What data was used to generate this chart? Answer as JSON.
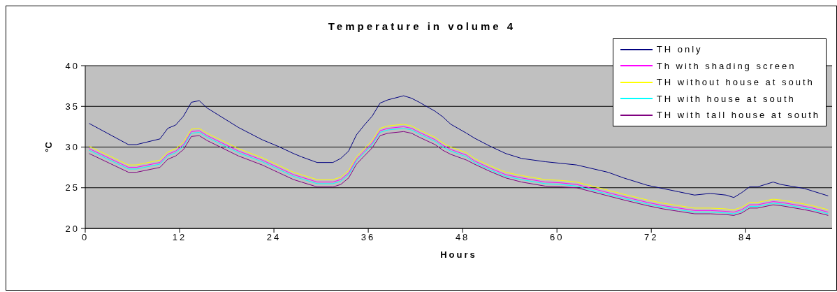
{
  "chart_data": {
    "type": "line",
    "title": "Temperature in volume 4",
    "xlabel": "Hours",
    "ylabel": "°C",
    "x": [
      0.5,
      5.5,
      6.5,
      9.5,
      10.5,
      11.5,
      12.5,
      13.5,
      14.5,
      15.5,
      19.5,
      22.5,
      24.5,
      26.5,
      27.5,
      29.5,
      31.5,
      32.5,
      33.5,
      34.5,
      35.5,
      36.5,
      37.5,
      38.5,
      40.5,
      41.5,
      42.5,
      44.5,
      45.5,
      46.5,
      48.5,
      49.5,
      51.5,
      53.5,
      55.5,
      58.5,
      60.5,
      62.5,
      66.5,
      68.5,
      71.5,
      73.5,
      75.5,
      77.5,
      79.5,
      81.5,
      82.5,
      83.5,
      84.5,
      85.5,
      87.5,
      88.5,
      91.5,
      92.5,
      94.5
    ],
    "series": [
      {
        "name": "TH only",
        "color": "#000080",
        "values": [
          32.9,
          30.3,
          30.3,
          31.0,
          32.3,
          32.7,
          33.8,
          35.5,
          35.7,
          34.8,
          32.4,
          30.9,
          30.1,
          29.2,
          28.8,
          28.1,
          28.1,
          28.6,
          29.5,
          31.5,
          32.7,
          33.8,
          35.4,
          35.8,
          36.3,
          36.0,
          35.5,
          34.4,
          33.7,
          32.8,
          31.7,
          31.1,
          30.1,
          29.2,
          28.6,
          28.2,
          28.0,
          27.8,
          26.9,
          26.2,
          25.3,
          24.9,
          24.5,
          24.1,
          24.3,
          24.1,
          23.8,
          24.4,
          25.1,
          25.1,
          25.7,
          25.4,
          24.9,
          24.6,
          24.0
        ]
      },
      {
        "name": "Th with shading screen",
        "color": "#ff00ff",
        "values": [
          29.8,
          27.5,
          27.5,
          28.1,
          29.1,
          29.5,
          30.3,
          31.9,
          32.0,
          31.4,
          29.5,
          28.4,
          27.5,
          26.6,
          26.3,
          25.7,
          25.7,
          26.0,
          26.8,
          28.5,
          29.5,
          30.5,
          32.0,
          32.3,
          32.5,
          32.3,
          31.8,
          30.9,
          30.2,
          29.7,
          29.0,
          28.3,
          27.4,
          26.6,
          26.2,
          25.7,
          25.6,
          25.4,
          24.4,
          23.9,
          23.2,
          22.8,
          22.5,
          22.2,
          22.2,
          22.1,
          22.0,
          22.3,
          22.9,
          22.9,
          23.3,
          23.2,
          22.7,
          22.5,
          22.0
        ]
      },
      {
        "name": "TH without house at south",
        "color": "#ffff00",
        "values": [
          30.1,
          27.8,
          27.8,
          28.4,
          29.4,
          29.8,
          30.6,
          32.2,
          32.3,
          31.7,
          29.8,
          28.7,
          27.8,
          26.9,
          26.6,
          26.0,
          26.0,
          26.3,
          27.1,
          28.8,
          29.8,
          30.8,
          32.3,
          32.6,
          32.8,
          32.6,
          32.1,
          31.2,
          30.5,
          30.0,
          29.3,
          28.6,
          27.7,
          26.9,
          26.5,
          26.0,
          25.9,
          25.7,
          24.7,
          24.2,
          23.5,
          23.1,
          22.8,
          22.5,
          22.5,
          22.4,
          22.3,
          22.6,
          23.2,
          23.2,
          23.6,
          23.5,
          23.0,
          22.8,
          22.3
        ]
      },
      {
        "name": "TH with house at south",
        "color": "#00ffff",
        "values": [
          29.6,
          27.3,
          27.3,
          27.9,
          28.9,
          29.3,
          30.1,
          31.7,
          31.8,
          31.2,
          29.3,
          28.2,
          27.3,
          26.4,
          26.1,
          25.5,
          25.5,
          25.8,
          26.6,
          28.3,
          29.3,
          30.3,
          31.8,
          32.1,
          32.3,
          32.1,
          31.6,
          30.7,
          30.0,
          29.5,
          28.8,
          28.1,
          27.2,
          26.4,
          26.0,
          25.5,
          25.4,
          25.2,
          24.2,
          23.7,
          23.0,
          22.6,
          22.3,
          22.0,
          22.0,
          21.9,
          21.8,
          22.1,
          22.7,
          22.7,
          23.1,
          23.0,
          22.5,
          22.3,
          21.8
        ]
      },
      {
        "name": "TH with tall house at south",
        "color": "#800080",
        "values": [
          29.2,
          26.9,
          26.9,
          27.5,
          28.5,
          28.9,
          29.7,
          31.3,
          31.4,
          30.8,
          28.9,
          27.8,
          26.9,
          26.0,
          25.7,
          25.1,
          25.1,
          25.4,
          26.2,
          27.9,
          28.9,
          29.9,
          31.4,
          31.7,
          31.9,
          31.7,
          31.2,
          30.3,
          29.6,
          29.1,
          28.4,
          27.9,
          27.0,
          26.2,
          25.7,
          25.2,
          25.1,
          25.0,
          24.0,
          23.5,
          22.8,
          22.4,
          22.1,
          21.8,
          21.8,
          21.7,
          21.6,
          21.9,
          22.5,
          22.5,
          22.9,
          22.8,
          22.3,
          22.1,
          21.6
        ]
      }
    ],
    "xlim": [
      0,
      95
    ],
    "xticks": [
      0,
      12,
      24,
      36,
      48,
      60,
      72,
      84
    ],
    "ylim": [
      20,
      40
    ],
    "yticks": [
      20,
      25,
      30,
      35,
      40
    ],
    "grid": "y",
    "legend": "top right",
    "marker": "none",
    "line_style": "solid"
  }
}
